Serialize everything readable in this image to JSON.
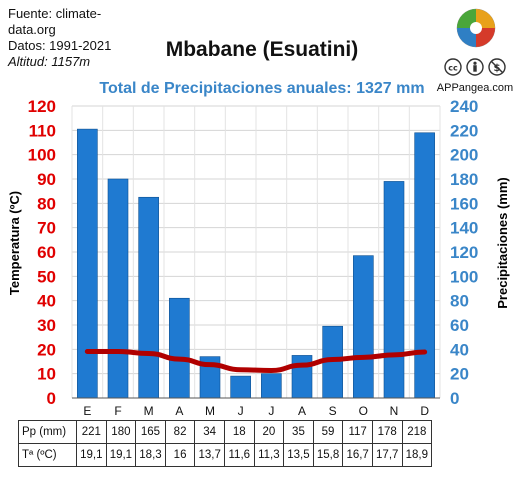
{
  "source": {
    "line1": "Fuente: climate-",
    "line2": "data.org",
    "line3": "Datos: 1991-2021",
    "line4": "Altitud: 1157m"
  },
  "place": "Mbabane (Esuatini)",
  "brand": "APPangea.com",
  "chart_data": {
    "type": "bar",
    "title": "Total de Precipitaciones anuales: 1327 mm",
    "categories": [
      "E",
      "F",
      "M",
      "A",
      "M",
      "J",
      "J",
      "A",
      "S",
      "O",
      "N",
      "D"
    ],
    "ylabel_left": "Temperatura (ºC)",
    "ylabel_right": "Precipitaciones (mm)",
    "ylim_left": [
      0,
      120
    ],
    "ylim_right": [
      0,
      240
    ],
    "left_ticks": [
      0,
      10,
      20,
      30,
      40,
      50,
      60,
      70,
      80,
      90,
      100,
      110,
      120
    ],
    "right_ticks": [
      0,
      20,
      40,
      60,
      80,
      100,
      120,
      140,
      160,
      180,
      200,
      220,
      240
    ],
    "series": [
      {
        "kind": "bar",
        "axis": "right",
        "color": "#1f7ad1",
        "values": [
          221,
          180,
          165,
          82,
          34,
          18,
          20,
          35,
          59,
          117,
          178,
          218
        ]
      },
      {
        "kind": "line",
        "axis": "left",
        "color": "#b00000",
        "values": [
          19.1,
          19.1,
          18.3,
          16,
          13.7,
          11.6,
          11.3,
          13.5,
          15.8,
          16.7,
          17.7,
          18.9
        ]
      }
    ],
    "grid": true,
    "colors": {
      "left_axis": "#e00000",
      "right_axis": "#3a86c8",
      "bar": "#1f7ad1",
      "line": "#b00000"
    }
  },
  "table": {
    "pp_label": "Pp (mm)",
    "t_label": "Tª (ºC)",
    "pp": [
      "221",
      "180",
      "165",
      "82",
      "34",
      "18",
      "20",
      "35",
      "59",
      "117",
      "178",
      "218"
    ],
    "t": [
      "19,1",
      "19,1",
      "18,3",
      "16",
      "13,7",
      "11,6",
      "11,3",
      "13,5",
      "15,8",
      "16,7",
      "17,7",
      "18,9"
    ]
  },
  "icons": [
    "puzzle-logo-icon",
    "cc-license-icon",
    "attribution-icon",
    "noncommercial-icon"
  ]
}
